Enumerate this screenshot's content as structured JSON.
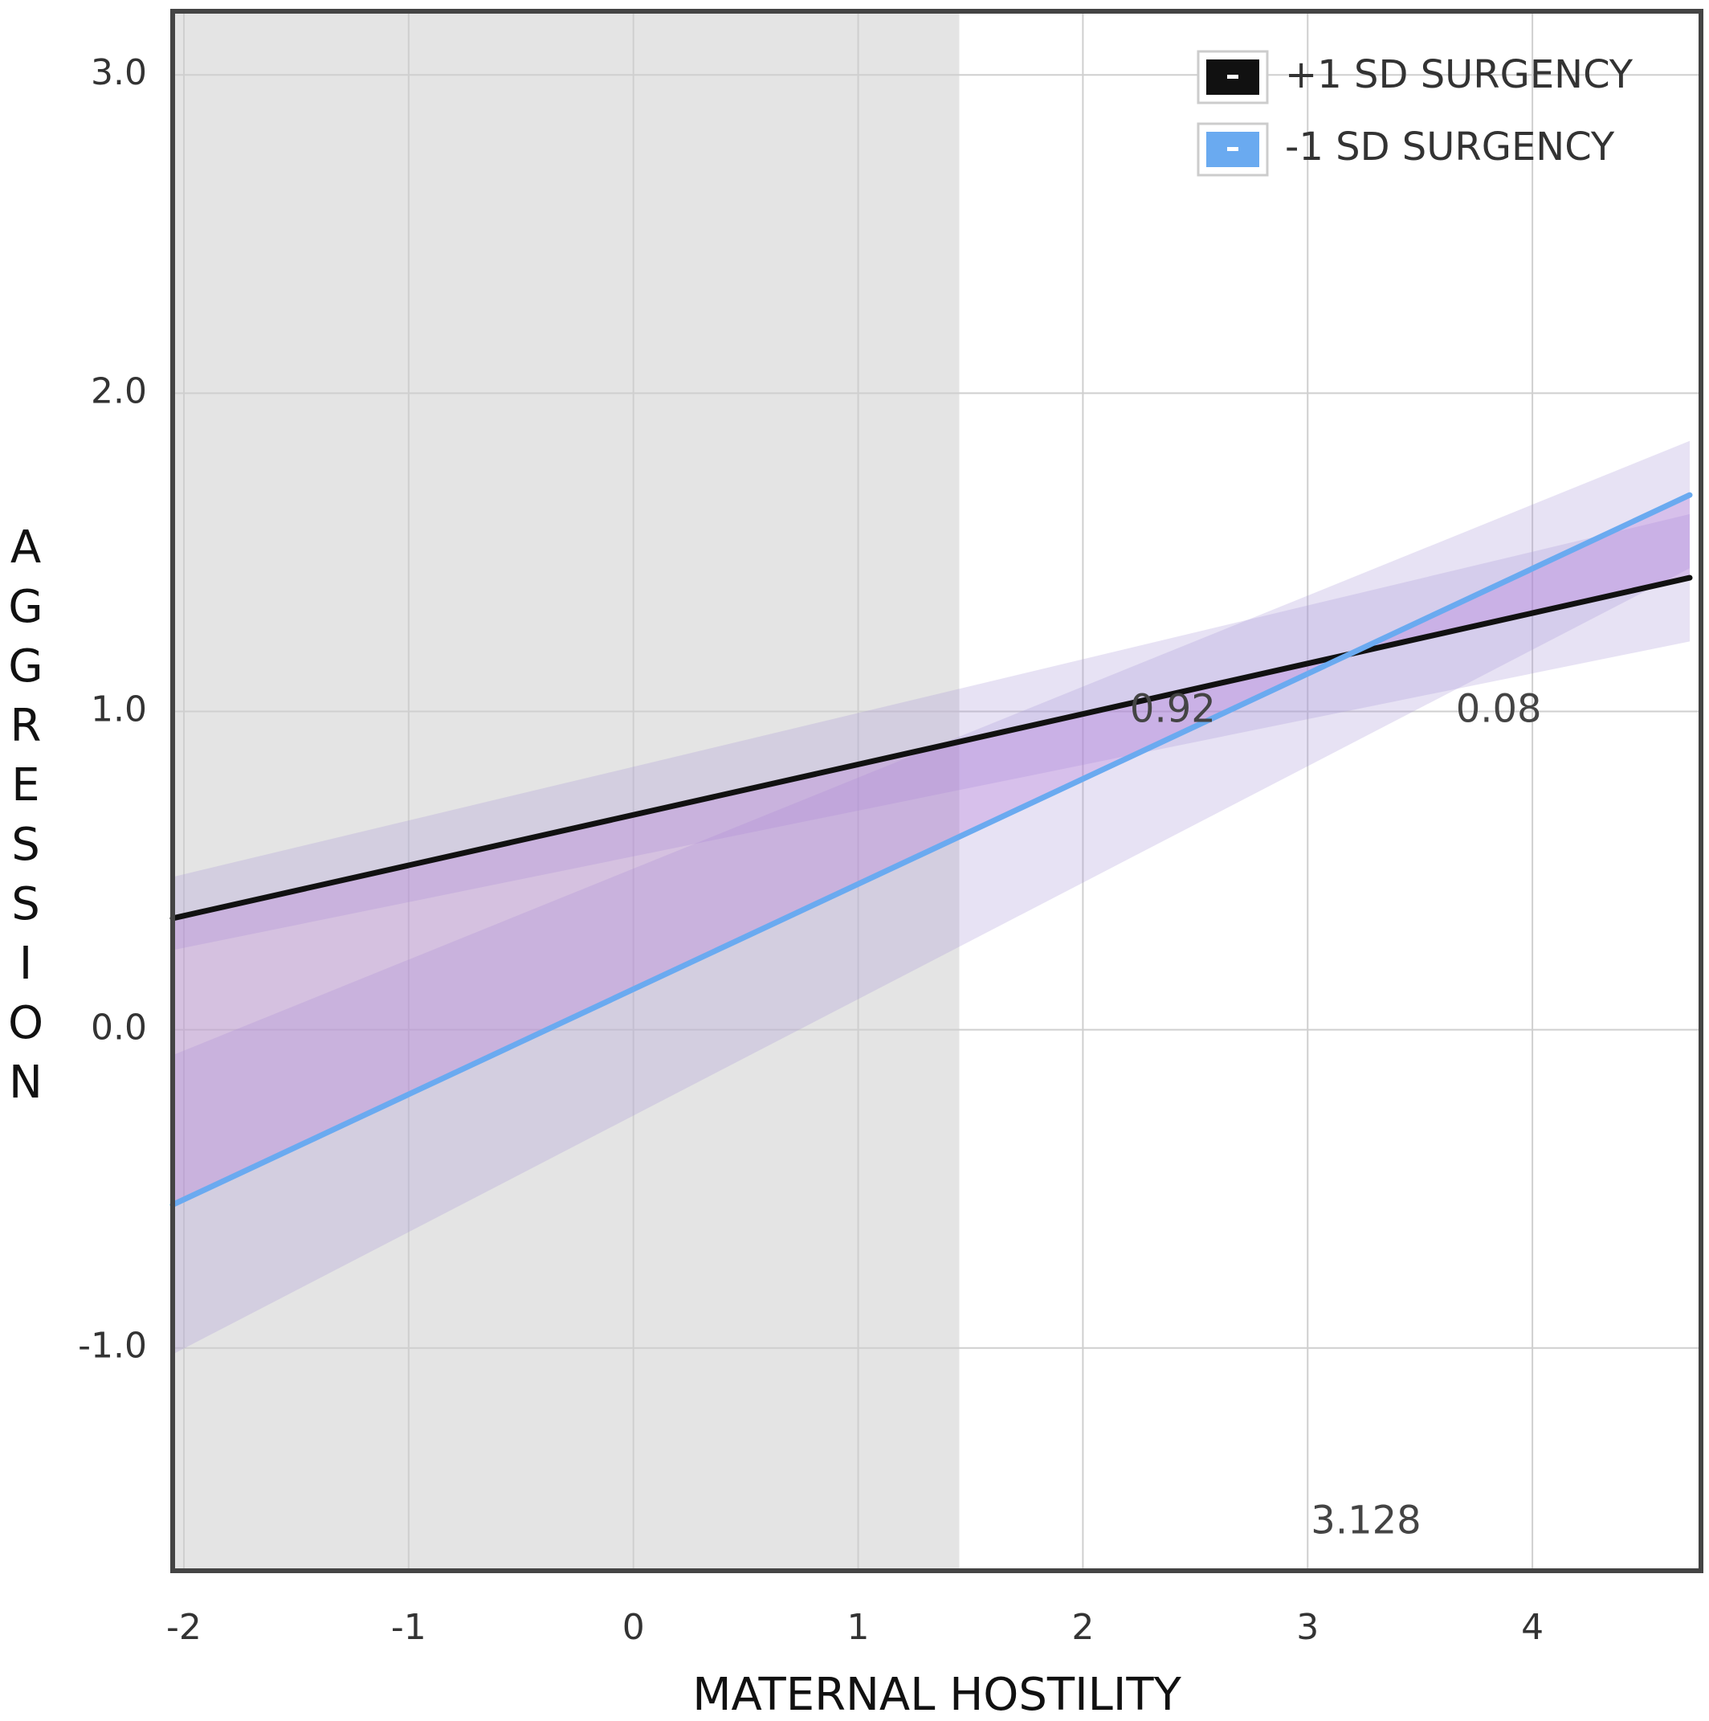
{
  "chart_data": {
    "type": "line",
    "xlabel": "MATERNAL HOSTILITY",
    "ylabel": "AGGRESSION",
    "xlim": [
      -2.05,
      4.75
    ],
    "ylim": [
      -1.7,
      3.2
    ],
    "x_ticks": [
      {
        "value": -2,
        "label": "-2"
      },
      {
        "value": -1,
        "label": "-1"
      },
      {
        "value": 0,
        "label": "0"
      },
      {
        "value": 1,
        "label": "1"
      },
      {
        "value": 2,
        "label": "2"
      },
      {
        "value": 3,
        "label": "3"
      },
      {
        "value": 4,
        "label": "4"
      }
    ],
    "y_ticks": [
      {
        "value": -1.0,
        "label": "-1.0"
      },
      {
        "value": 0.0,
        "label": "0.0"
      },
      {
        "value": 1.0,
        "label": "1.0"
      },
      {
        "value": 2.0,
        "label": "2.0"
      },
      {
        "value": 3.0,
        "label": "3.0"
      }
    ],
    "grid": true,
    "legend_position": "top-right",
    "shaded_region": {
      "x_from": -2.05,
      "x_to": 1.45,
      "color": "#e4e4e4"
    },
    "series": [
      {
        "name": "+1 SD SURGENCY",
        "color": "#111111",
        "x": [
          -2.05,
          4.7
        ],
        "y": [
          0.35,
          1.42
        ],
        "ci_lower": [
          0.25,
          1.22
        ],
        "ci_upper": [
          0.48,
          1.62
        ]
      },
      {
        "name": "-1 SD SURGENCY",
        "color": "#6aaaf0",
        "x": [
          -2.05,
          4.7
        ],
        "y": [
          -0.55,
          1.68
        ],
        "ci_lower": [
          -1.02,
          1.45
        ],
        "ci_upper": [
          -0.08,
          1.85
        ]
      }
    ],
    "annotations": [
      {
        "text": "0.92",
        "x": 2.4,
        "y": 1.0
      },
      {
        "text": "0.08",
        "x": 3.85,
        "y": 1.0
      },
      {
        "text": "3.128",
        "x": 3.26,
        "y": -1.55
      }
    ],
    "colors": {
      "between_fill": "#b36fd8",
      "ci_fill": "#a896d8",
      "frame": "#444444",
      "grid": "#cfcfcf"
    }
  }
}
